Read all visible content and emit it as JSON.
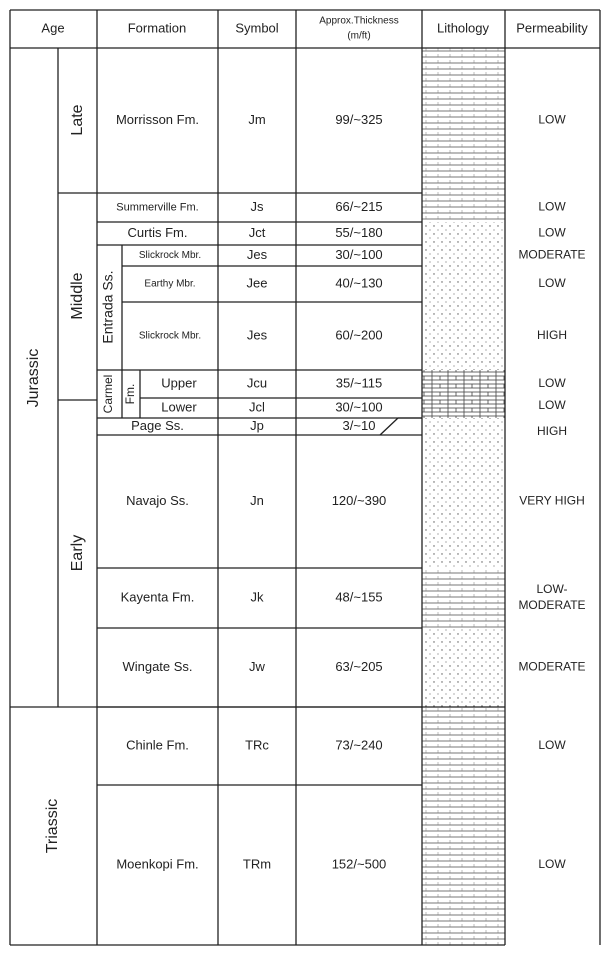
{
  "header": {
    "age": "Age",
    "formation": "Formation",
    "symbol": "Symbol",
    "thickness": [
      "Approx.Thickness",
      "(m/ft)"
    ],
    "lithology": "Lithology",
    "permeability": "Permeability"
  },
  "periods": [
    "Jurassic",
    "Triassic"
  ],
  "epochs": [
    "Late",
    "Middle",
    "Early"
  ],
  "groups": {
    "entrada": "Entrada Ss.",
    "carmel": [
      "Carmel",
      "Fm."
    ]
  },
  "rows": [
    {
      "formation": "Morrisson Fm.",
      "symbol": "Jm",
      "thickness": "99/~325",
      "permeability": "LOW"
    },
    {
      "formation": "Summerville Fm.",
      "symbol": "Js",
      "thickness": "66/~215",
      "permeability": "LOW"
    },
    {
      "formation": "Curtis Fm.",
      "symbol": "Jct",
      "thickness": "55/~180",
      "permeability": "LOW"
    },
    {
      "formation": "Slickrock Mbr.",
      "symbol": "Jes",
      "thickness": "30/~100",
      "permeability": "MODERATE"
    },
    {
      "formation": "Earthy Mbr.",
      "symbol": "Jee",
      "thickness": "40/~130",
      "permeability": "LOW"
    },
    {
      "formation": "Slickrock Mbr.",
      "symbol": "Jes",
      "thickness": "60/~200",
      "permeability": "HIGH"
    },
    {
      "formation": "Upper",
      "symbol": "Jcu",
      "thickness": "35/~115",
      "permeability": "LOW"
    },
    {
      "formation": "Lower",
      "symbol": "Jcl",
      "thickness": "30/~100",
      "permeability": "LOW"
    },
    {
      "formation": "Page Ss.",
      "symbol": "Jp",
      "thickness": "3/~10",
      "permeability": "HIGH"
    },
    {
      "formation": "Navajo Ss.",
      "symbol": "Jn",
      "thickness": "120/~390",
      "permeability": "VERY HIGH"
    },
    {
      "formation": "Kayenta Fm.",
      "symbol": "Jk",
      "thickness": "48/~155",
      "permeability": [
        "LOW-",
        "MODERATE"
      ]
    },
    {
      "formation": "Wingate Ss.",
      "symbol": "Jw",
      "thickness": "63/~205",
      "permeability": "MODERATE"
    },
    {
      "formation": "Chinle Fm.",
      "symbol": "TRc",
      "thickness": "73/~240",
      "permeability": "LOW"
    },
    {
      "formation": "Moenkopi Fm.",
      "symbol": "TRm",
      "thickness": "152/~500",
      "permeability": "LOW"
    }
  ]
}
